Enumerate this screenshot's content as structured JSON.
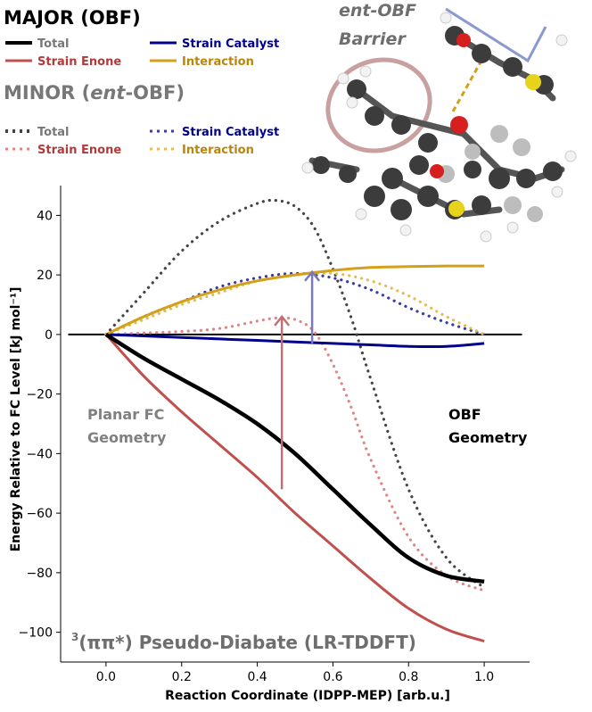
{
  "chart_data": {
    "type": "line",
    "xlabel": "Reaction Coordinate (IDPP-MEP) [arb.u.]",
    "ylabel": "Energy Relative to FC Level [kJ mol⁻¹]",
    "xlim": [
      -0.12,
      1.12
    ],
    "ylim": [
      -110,
      50
    ],
    "x_ticks": [
      "0.0",
      "0.2",
      "0.4",
      "0.6",
      "0.8",
      "1.0"
    ],
    "y_ticks": [
      "40",
      "20",
      "0",
      "−20",
      "−40",
      "−60",
      "−80",
      "−100"
    ],
    "grid": false,
    "legend": {
      "major_title": "MAJOR (OBF)",
      "minor_title_prefix": "MINOR (",
      "minor_title_italic": "ent",
      "minor_title_suffix": "-OBF)",
      "entries": [
        "Total",
        "Strain Enone",
        "Strain Catalyst",
        "Interaction"
      ]
    },
    "colors": {
      "total": "#000000",
      "total_dotted": "#444444",
      "strain_enone": "#c0504d",
      "strain_enone_dotted": "#e08585",
      "strain_catalyst": "#00008b",
      "strain_catalyst_dotted": "#3a3aa6",
      "interaction": "#d4a017",
      "interaction_dotted": "#e3bc55",
      "arrow_red": "#c07070",
      "arrow_blue": "#7a7ab8",
      "annotation_gray": "#808080"
    },
    "annotations": {
      "left_line1": "Planar FC",
      "left_line2": "Geometry",
      "right_line1": "OBF",
      "right_line2": "Geometry",
      "bottom_superscript": "3",
      "bottom_rest": "(ππ*) Pseudo-Diabate (LR-TDDFT)",
      "molecule_label_line1": "ent-OBF",
      "molecule_label_line2": "Barrier"
    },
    "series": [
      {
        "name": "Total",
        "group": "major",
        "style": "solid",
        "x": [
          0,
          0.1,
          0.2,
          0.3,
          0.4,
          0.5,
          0.6,
          0.7,
          0.8,
          0.9,
          1.0
        ],
        "y": [
          0,
          -8,
          -15,
          -22,
          -30,
          -40,
          -52,
          -64,
          -75,
          -81,
          -83
        ]
      },
      {
        "name": "Strain Enone",
        "group": "major",
        "style": "solid",
        "x": [
          0,
          0.1,
          0.2,
          0.3,
          0.4,
          0.5,
          0.6,
          0.7,
          0.8,
          0.9,
          1.0
        ],
        "y": [
          0,
          -14,
          -26,
          -37,
          -48,
          -60,
          -71,
          -82,
          -92,
          -99,
          -103
        ]
      },
      {
        "name": "Strain Catalyst",
        "group": "major",
        "style": "solid",
        "x": [
          0,
          0.1,
          0.2,
          0.3,
          0.4,
          0.5,
          0.6,
          0.7,
          0.8,
          0.9,
          1.0
        ],
        "y": [
          0,
          -0.5,
          -1,
          -1.5,
          -2,
          -2.5,
          -3,
          -3.5,
          -4,
          -4,
          -3
        ]
      },
      {
        "name": "Interaction",
        "group": "major",
        "style": "solid",
        "x": [
          0,
          0.1,
          0.2,
          0.3,
          0.4,
          0.5,
          0.6,
          0.7,
          0.8,
          0.9,
          1.0
        ],
        "y": [
          0,
          6,
          11,
          15,
          18,
          20,
          21.5,
          22.5,
          22.8,
          23,
          23
        ]
      },
      {
        "name": "Total",
        "group": "minor",
        "style": "dotted",
        "x": [
          0,
          0.1,
          0.2,
          0.3,
          0.4,
          0.45,
          0.5,
          0.55,
          0.6,
          0.65,
          0.7,
          0.8,
          0.9,
          1.0
        ],
        "y": [
          0,
          14,
          28,
          38,
          44,
          45,
          43,
          36,
          22,
          5,
          -15,
          -52,
          -75,
          -85
        ]
      },
      {
        "name": "Strain Enone",
        "group": "minor",
        "style": "dotted",
        "x": [
          0,
          0.1,
          0.2,
          0.3,
          0.4,
          0.45,
          0.5,
          0.55,
          0.6,
          0.65,
          0.7,
          0.8,
          0.9,
          1.0
        ],
        "y": [
          0,
          0.5,
          1,
          2,
          4.5,
          5.5,
          5,
          1,
          -10,
          -25,
          -42,
          -68,
          -81,
          -86
        ]
      },
      {
        "name": "Strain Catalyst",
        "group": "minor",
        "style": "dotted",
        "x": [
          0,
          0.1,
          0.2,
          0.3,
          0.4,
          0.5,
          0.6,
          0.7,
          0.8,
          0.9,
          1.0
        ],
        "y": [
          0,
          6,
          11,
          16,
          19,
          20.5,
          19,
          15,
          9,
          4,
          0
        ]
      },
      {
        "name": "Interaction",
        "group": "minor",
        "style": "dotted",
        "x": [
          0,
          0.1,
          0.2,
          0.3,
          0.4,
          0.5,
          0.6,
          0.7,
          0.8,
          0.9,
          1.0
        ],
        "y": [
          0,
          5,
          10,
          14,
          18,
          20,
          20.5,
          18,
          13,
          6,
          0
        ]
      }
    ],
    "arrows": [
      {
        "name": "red-arrow",
        "x": 0.465,
        "y_from": -52,
        "y_to": 6
      },
      {
        "name": "blue-arrow",
        "x": 0.545,
        "y_from": -3,
        "y_to": 21
      }
    ]
  }
}
